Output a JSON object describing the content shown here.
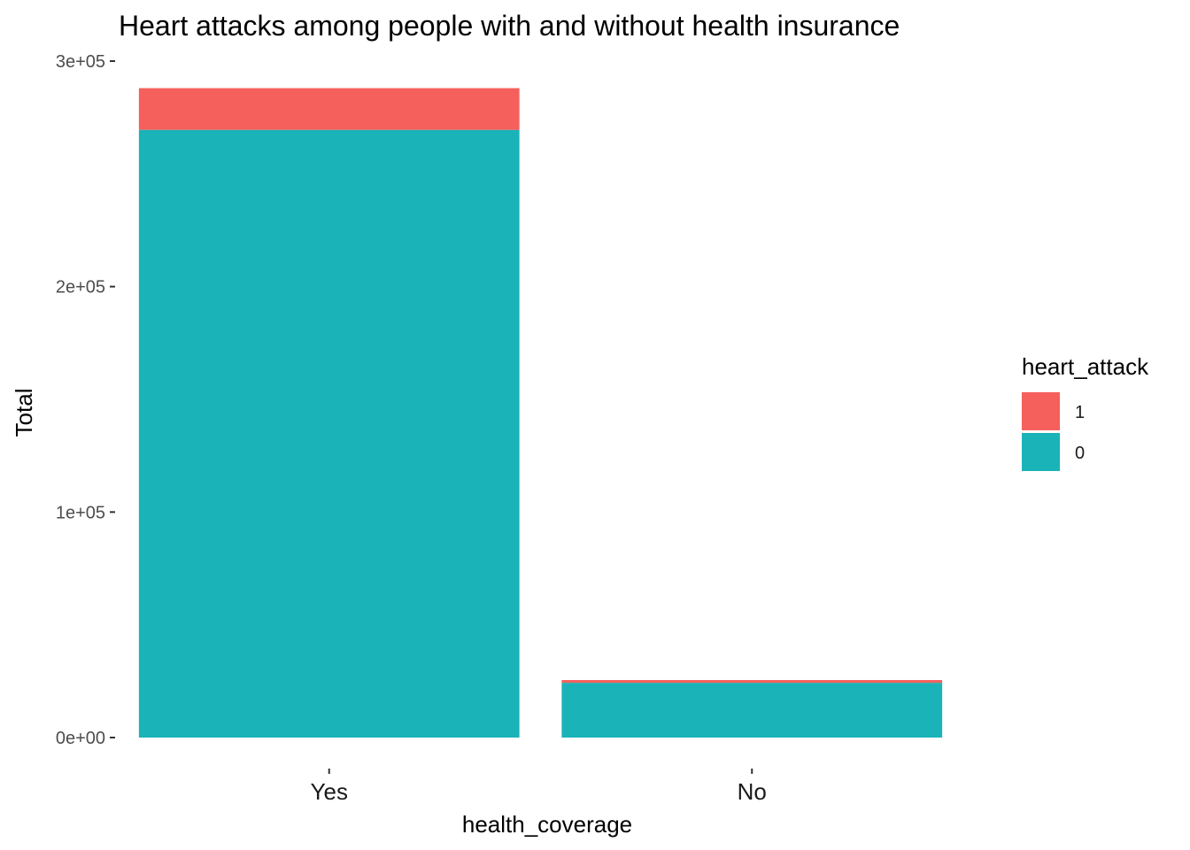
{
  "chart_data": {
    "type": "bar",
    "stacked": true,
    "title": "Heart attacks among people with and without health insurance",
    "xlabel": "health_coverage",
    "ylabel": "Total",
    "categories": [
      "Yes",
      "No"
    ],
    "ylim": [
      0,
      300000
    ],
    "yticks": [
      0,
      100000,
      200000,
      300000
    ],
    "ytick_labels": [
      "0e+00",
      "1e+05",
      "2e+05",
      "3e+05"
    ],
    "grid": false,
    "legend": {
      "title": "heart_attack",
      "placement": "right"
    },
    "series": [
      {
        "name": "0",
        "color": "#19B3B8",
        "values": [
          269500,
          24300
        ]
      },
      {
        "name": "1",
        "color": "#F5605C",
        "values": [
          18500,
          1200
        ]
      }
    ],
    "legend_order": [
      "1",
      "0"
    ]
  }
}
